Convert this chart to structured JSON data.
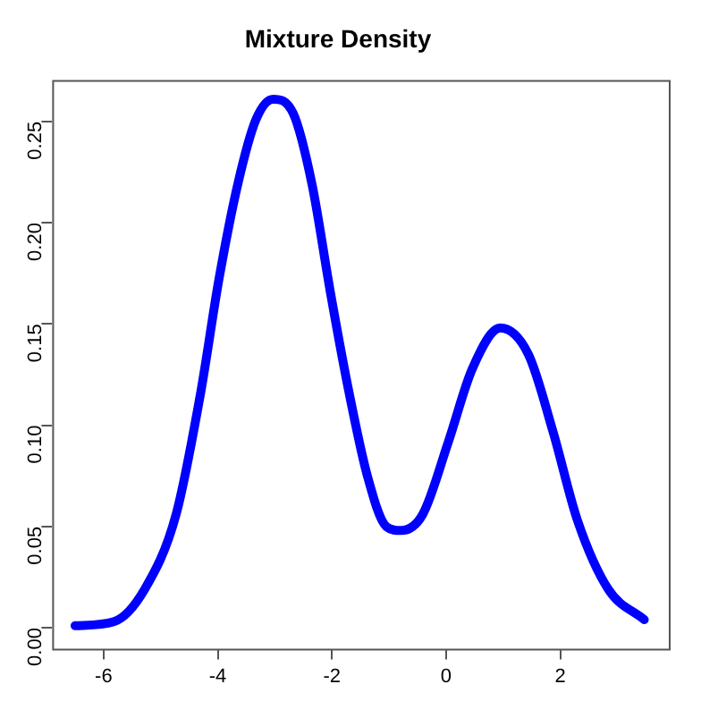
{
  "chart_data": {
    "type": "line",
    "title": "Mixture Density",
    "x": [
      -6.5,
      -5.82,
      -5.28,
      -4.73,
      -4.3,
      -3.98,
      -3.65,
      -3.33,
      -3.03,
      -2.68,
      -2.35,
      -2.03,
      -1.7,
      -1.38,
      -1.05,
      -0.79,
      -0.41,
      0.03,
      0.46,
      0.95,
      1.44,
      1.87,
      2.3,
      2.84,
      3.47
    ],
    "series": [
      {
        "color": "#0000ff",
        "values": [
          0.001,
          0.003,
          0.019,
          0.056,
          0.116,
          0.172,
          0.219,
          0.251,
          0.261,
          0.254,
          0.219,
          0.166,
          0.116,
          0.075,
          0.05,
          0.048,
          0.056,
          0.091,
          0.128,
          0.148,
          0.135,
          0.097,
          0.053,
          0.019,
          0.004
        ]
      }
    ],
    "xlim": [
      -6.9,
      3.9
    ],
    "xticks": [
      -6,
      -4,
      -2,
      0,
      2
    ],
    "ylim": [
      -0.0104,
      0.2704
    ],
    "yticks": [
      {
        "value": 0,
        "label": "0.00"
      },
      {
        "value": 0.05,
        "label": "0.05"
      },
      {
        "value": 0.1,
        "label": "0.10"
      },
      {
        "value": 0.15,
        "label": "0.15"
      },
      {
        "value": 0.2,
        "label": "0.20"
      },
      {
        "value": 0.25,
        "label": "0.25"
      }
    ],
    "grid": false,
    "legend": false,
    "marker": "none",
    "line_style": "solid"
  }
}
